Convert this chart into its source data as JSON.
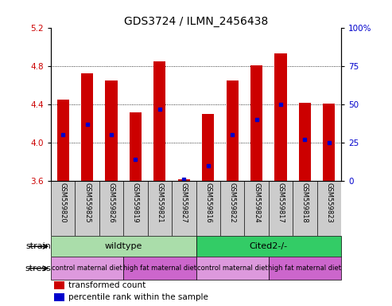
{
  "title": "GDS3724 / ILMN_2456438",
  "samples": [
    "GSM559820",
    "GSM559825",
    "GSM559826",
    "GSM559819",
    "GSM559821",
    "GSM559827",
    "GSM559816",
    "GSM559822",
    "GSM559824",
    "GSM559817",
    "GSM559818",
    "GSM559823"
  ],
  "transformed_count": [
    4.45,
    4.72,
    4.65,
    4.32,
    4.85,
    3.62,
    4.3,
    4.65,
    4.81,
    4.93,
    4.42,
    4.41
  ],
  "percentile_rank": [
    30,
    37,
    30,
    14,
    47,
    1,
    10,
    30,
    40,
    50,
    27,
    25
  ],
  "ylim_left": [
    3.6,
    5.2
  ],
  "ylim_right": [
    0,
    100
  ],
  "yticks_left": [
    3.6,
    4.0,
    4.4,
    4.8,
    5.2
  ],
  "yticks_right": [
    0,
    25,
    50,
    75,
    100
  ],
  "bar_color": "#cc0000",
  "dot_color": "#0000cc",
  "strain_wildtype_color": "#aaddaa",
  "strain_cited_color": "#33cc66",
  "stress_control_color": "#dd99dd",
  "stress_highfat_color": "#cc66cc",
  "left_label_color": "#cc0000",
  "right_label_color": "#0000cc",
  "bar_width": 0.5,
  "strain_groups": [
    {
      "label": "wildtype",
      "start": 0,
      "end": 6
    },
    {
      "label": "Cited2-/-",
      "start": 6,
      "end": 12
    }
  ],
  "stress_groups": [
    {
      "label": "control maternal diet",
      "start": 0,
      "end": 3,
      "type": "control"
    },
    {
      "label": "high fat maternal diet",
      "start": 3,
      "end": 6,
      "type": "highfat"
    },
    {
      "label": "control maternal diet",
      "start": 6,
      "end": 9,
      "type": "control"
    },
    {
      "label": "high fat maternal diet",
      "start": 9,
      "end": 12,
      "type": "highfat"
    }
  ]
}
